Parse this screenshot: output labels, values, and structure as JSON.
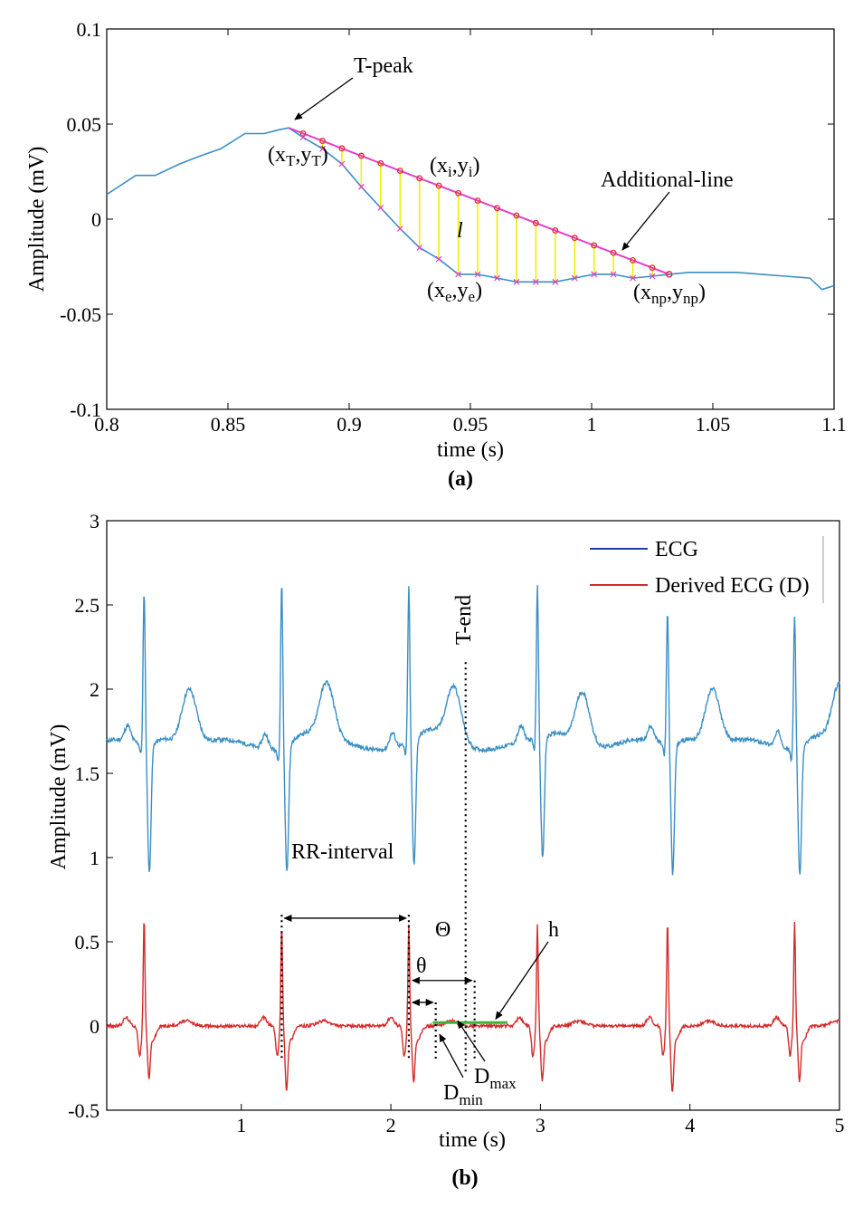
{
  "chart_data": [
    {
      "type": "line",
      "caption": "(a)",
      "xlabel": "time (s)",
      "ylabel": "Amplitude (mV)",
      "xlim": [
        0.8,
        1.1
      ],
      "ylim": [
        -0.1,
        0.1
      ],
      "xticks": [
        0.8,
        0.85,
        0.9,
        0.95,
        1,
        1.05,
        1.1
      ],
      "xtick_labels": [
        "0.8",
        "0.85",
        "0.9",
        "0.95",
        "1",
        "1.05",
        "1.1"
      ],
      "yticks": [
        -0.1,
        -0.05,
        0,
        0.05,
        0.1
      ],
      "ytick_labels": [
        "-0.1",
        "-0.05",
        "0",
        "0.05",
        "0.1"
      ],
      "grid": false,
      "colors": {
        "signal": "#3a8fc4",
        "line": "#e040c8",
        "markers": "#e03030",
        "hatch": "#f0f000"
      },
      "series": [
        {
          "x": [
            0.8,
            0.812,
            0.82,
            0.83,
            0.838,
            0.847,
            0.857,
            0.865,
            0.871,
            0.875,
            0.881,
            0.889,
            0.897,
            0.905,
            0.913,
            0.921,
            0.929,
            0.937,
            0.945,
            0.953,
            0.961,
            0.969,
            0.977,
            0.985,
            0.993,
            1.001,
            1.009,
            1.017,
            1.025,
            1.032,
            1.04,
            1.05,
            1.06,
            1.07,
            1.08,
            1.09,
            1.095,
            1.1
          ],
          "y": [
            0.013,
            0.023,
            0.023,
            0.029,
            0.033,
            0.037,
            0.045,
            0.045,
            0.047,
            0.048,
            0.043,
            0.037,
            0.029,
            0.017,
            0.006,
            -0.005,
            -0.015,
            -0.021,
            -0.029,
            -0.029,
            -0.031,
            -0.033,
            -0.033,
            -0.033,
            -0.031,
            -0.029,
            -0.029,
            -0.031,
            -0.03,
            -0.029,
            -0.028,
            -0.028,
            -0.028,
            -0.029,
            -0.03,
            -0.031,
            -0.037,
            -0.035
          ]
        }
      ],
      "additional_line": {
        "x": [
          0.875,
          1.032
        ],
        "y": [
          0.048,
          -0.029
        ]
      },
      "hatch_x": [
        0.881,
        0.889,
        0.897,
        0.905,
        0.913,
        0.921,
        0.929,
        0.937,
        0.945,
        0.953,
        0.961,
        0.969,
        0.977,
        0.985,
        0.993,
        1.001,
        1.009,
        1.017,
        1.025
      ],
      "annotations": {
        "t_peak": "T-peak",
        "additional_line": "Additional-line",
        "l": "l",
        "xT": {
          "open": "(x",
          "sub1": "T",
          "mid": ",y",
          "sub2": "T",
          "close": ")"
        },
        "xi": {
          "open": "(x",
          "sub1": "i",
          "mid": ",y",
          "sub2": "i",
          "close": ")"
        },
        "xe": {
          "open": "(x",
          "sub1": "e",
          "mid": ",y",
          "sub2": "e",
          "close": ")"
        },
        "xnp": {
          "open": "(x",
          "sub1": "np",
          "mid": ",y",
          "sub2": "np",
          "close": ")"
        }
      }
    },
    {
      "type": "line",
      "caption": "(b)",
      "xlabel": "time (s)",
      "ylabel": "Amplitude (mV)",
      "xlim": [
        0.1,
        5.0
      ],
      "ylim": [
        -0.5,
        3
      ],
      "xticks": [
        1,
        2,
        3,
        4,
        5
      ],
      "xtick_labels": [
        "1",
        "2",
        "3",
        "4",
        "5"
      ],
      "yticks": [
        -0.5,
        0,
        0.5,
        1,
        1.5,
        2,
        2.5,
        3
      ],
      "ytick_labels": [
        "-0.5",
        "0",
        "0.5",
        "1",
        "1.5",
        "2",
        "2.5",
        "3"
      ],
      "grid": false,
      "legend_position": "top-right",
      "series": [
        {
          "name": "ECG",
          "color": "#3a8fc4",
          "legend_color": "#1f3fa8",
          "baseline": 1.67,
          "r_peaks": [
            0.35,
            1.27,
            2.12,
            2.98,
            3.85,
            4.7
          ],
          "r_amp": [
            2.58,
            2.67,
            2.6,
            2.58,
            2.47,
            2.47
          ],
          "s_min": [
            0.9,
            0.92,
            0.93,
            0.95,
            0.9,
            0.9
          ]
        },
        {
          "name": "Derived ECG (D)",
          "color": "#d42a2a",
          "legend_color": "#d42a2a",
          "baseline": 0.0,
          "r_peaks": [
            0.35,
            1.27,
            2.12,
            2.98,
            3.85,
            4.7
          ],
          "r_amp": [
            0.65,
            0.6,
            0.6,
            0.6,
            0.62,
            0.62
          ],
          "s_min": [
            -0.28,
            -0.35,
            -0.3,
            -0.3,
            -0.37,
            -0.3
          ]
        }
      ],
      "annotations": {
        "t_end": "T-end",
        "rr_interval": "RR-interval",
        "theta_big": "Θ",
        "theta_small": "θ",
        "h": "h",
        "dmax": {
          "main": "D",
          "sub": "max"
        },
        "dmin": {
          "main": "D",
          "sub": "min"
        }
      },
      "markers": {
        "t_end": 2.5,
        "rr_start": 1.27,
        "rr_end": 2.12,
        "dmin_x": 2.3,
        "dmax_x": 2.56,
        "h_y": 0.02,
        "h_x": [
          2.28,
          2.78
        ],
        "colors": {
          "dotted": "#000000",
          "h_line": "#3cb43c"
        }
      }
    }
  ]
}
